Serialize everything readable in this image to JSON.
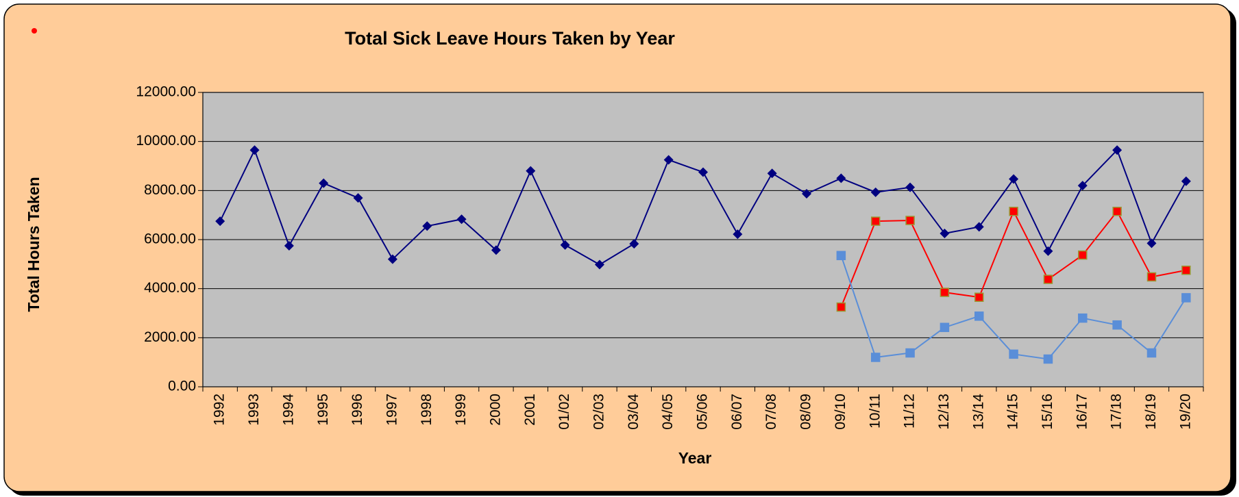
{
  "chart_data": {
    "type": "line",
    "title": "Total Sick Leave Hours Taken by Year",
    "xlabel": "Year",
    "ylabel": "Total Hours Taken",
    "categories": [
      "1992",
      "1993",
      "1994",
      "1995",
      "1996",
      "1997",
      "1998",
      "1999",
      "2000",
      "2001",
      "01/02",
      "02/03",
      "03/04",
      "04/05",
      "05/06",
      "06/07",
      "07/08",
      "08/09",
      "09/10",
      "10/11",
      "11/12",
      "12/13",
      "13/14",
      "14/15",
      "15/16",
      "16/17",
      "17/18",
      "18/19",
      "19/20"
    ],
    "series": [
      {
        "color": "#000080",
        "marker": "diamond",
        "values": [
          6750,
          9650,
          5750,
          8300,
          7700,
          5200,
          6550,
          6830,
          5570,
          8800,
          5780,
          4980,
          5830,
          9250,
          8750,
          6220,
          8700,
          7870,
          8500,
          7930,
          8130,
          6250,
          6520,
          8470,
          5530,
          8200,
          9650,
          5850,
          8380
        ]
      },
      {
        "color": "#FF0000",
        "marker": "square",
        "marker_edge": "#999933",
        "values": [
          null,
          null,
          null,
          null,
          null,
          null,
          null,
          null,
          null,
          null,
          null,
          null,
          null,
          null,
          null,
          null,
          null,
          null,
          3250,
          6750,
          6780,
          3850,
          3650,
          7150,
          4380,
          5370,
          7150,
          4480,
          4750
        ]
      },
      {
        "color": "#5A8ED8",
        "marker": "square",
        "values": [
          null,
          null,
          null,
          null,
          null,
          null,
          null,
          null,
          null,
          null,
          null,
          null,
          null,
          null,
          null,
          null,
          null,
          null,
          5350,
          1200,
          1380,
          2420,
          2880,
          1330,
          1130,
          2800,
          2520,
          1380,
          3630
        ]
      }
    ],
    "ylim": [
      0,
      12000
    ],
    "yticks": [
      {
        "value": 0,
        "label": "0.00"
      },
      {
        "value": 2000,
        "label": "2000.00"
      },
      {
        "value": 4000,
        "label": "4000.00"
      },
      {
        "value": 6000,
        "label": "6000.00"
      },
      {
        "value": 8000,
        "label": "8000.00"
      },
      {
        "value": 10000,
        "label": "10000.00"
      },
      {
        "value": 12000,
        "label": "12000.00"
      }
    ],
    "grid": true,
    "plot_background": "#C0C0C0"
  }
}
